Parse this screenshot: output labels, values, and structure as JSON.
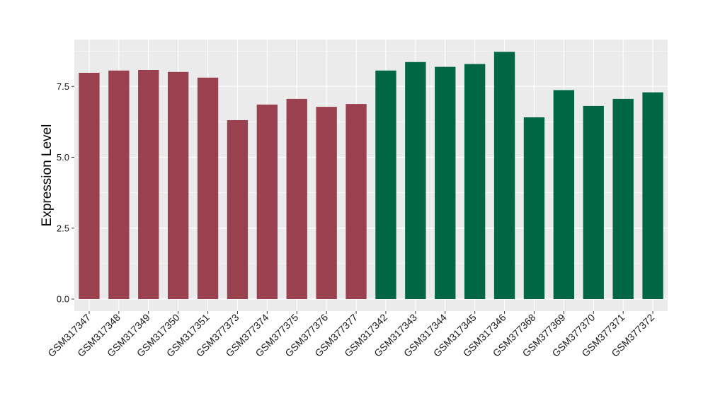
{
  "chart_data": {
    "type": "bar",
    "title": "",
    "xlabel": "",
    "ylabel": "Expression Level",
    "ylim": [
      0,
      8.95
    ],
    "yticks": [
      0.0,
      2.5,
      5.0,
      7.5
    ],
    "ytick_labels": [
      "0.0",
      "2.5",
      "5.0",
      "7.5"
    ],
    "grid": true,
    "categories": [
      "GSM317347",
      "GSM317348",
      "GSM317349",
      "GSM317350",
      "GSM317351",
      "GSM377373",
      "GSM377374",
      "GSM377375",
      "GSM377376",
      "GSM377377",
      "GSM317342",
      "GSM317343",
      "GSM317344",
      "GSM317345",
      "GSM317346",
      "GSM377368",
      "GSM377369",
      "GSM377370",
      "GSM377371",
      "GSM377372"
    ],
    "values": [
      7.98,
      8.06,
      8.08,
      8.01,
      7.81,
      6.31,
      6.86,
      7.06,
      6.78,
      6.88,
      8.06,
      8.36,
      8.19,
      8.29,
      8.72,
      6.41,
      7.37,
      6.81,
      7.06,
      7.29
    ],
    "bar_colors": [
      "#9b404e",
      "#9b404e",
      "#9b404e",
      "#9b404e",
      "#9b404e",
      "#9b404e",
      "#9b404e",
      "#9b404e",
      "#9b404e",
      "#9b404e",
      "#006644",
      "#006644",
      "#006644",
      "#006644",
      "#006644",
      "#006644",
      "#006644",
      "#006644",
      "#006644",
      "#006644"
    ],
    "panel_color": "#ebebeb",
    "grid_color": "#ffffff"
  }
}
